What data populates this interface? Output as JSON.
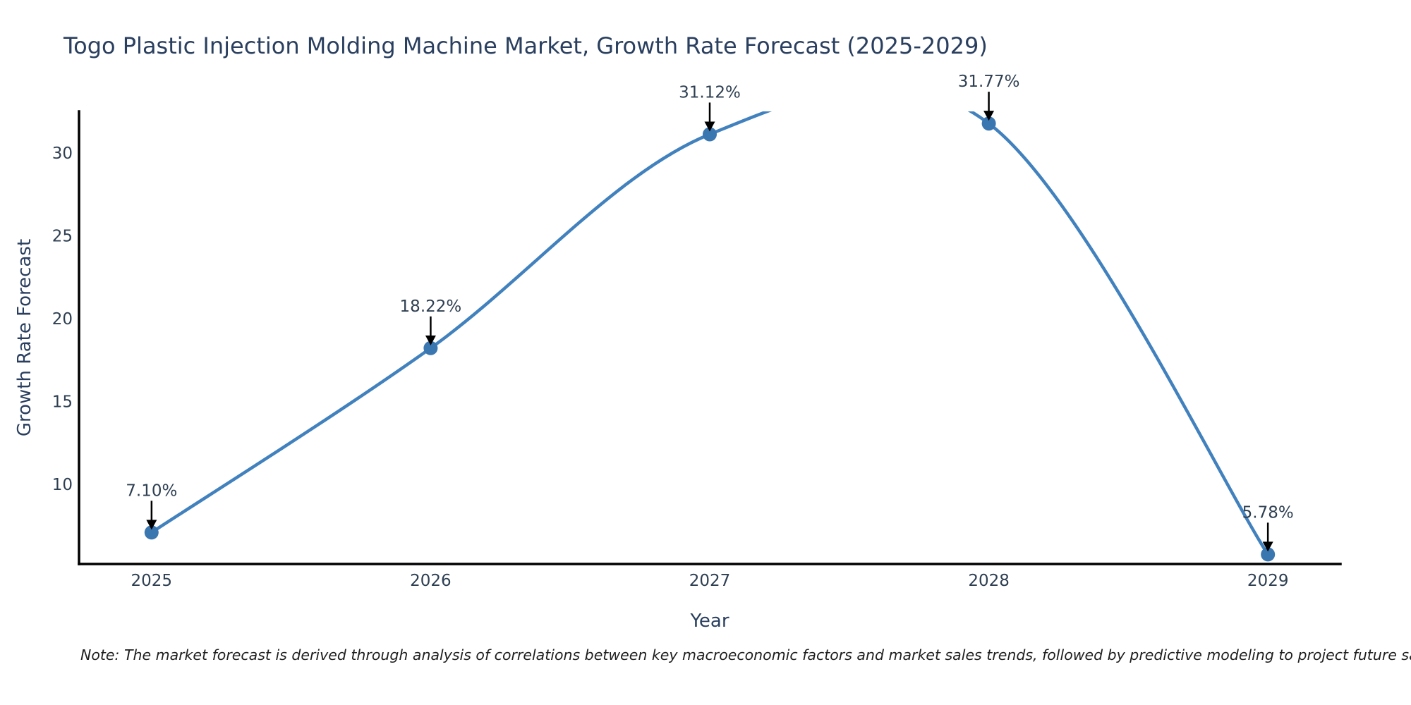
{
  "title": "Togo Plastic Injection Molding Machine Market, Growth Rate Forecast (2025-2029)",
  "note": "Note: The market forecast is derived through analysis of correlations between key macroeconomic factors and market sales trends, followed by predictive modeling to project future sales",
  "chart_data": {
    "type": "line",
    "line_shape": "spline",
    "x": [
      2025,
      2026,
      2027,
      2028,
      2029
    ],
    "values": [
      7.1,
      18.22,
      31.12,
      31.77,
      5.78
    ],
    "point_labels": [
      "7.10%",
      "18.22%",
      "31.12%",
      "31.77%",
      "5.78%"
    ],
    "x_tick_labels": [
      "2025",
      "2026",
      "2027",
      "2028",
      "2029"
    ],
    "y_ticks": [
      10,
      15,
      20,
      25,
      30
    ],
    "xlim": [
      2024.74,
      2029.26
    ],
    "ylim": [
      5.2,
      32.5
    ],
    "xlabel": "Year",
    "ylabel": "Growth Rate Forecast",
    "grid": false,
    "legend": "none",
    "annotations_clipped": false,
    "line_clipped_at_top": true,
    "colors": {
      "line": "#4181bd",
      "marker": "#3a76b0",
      "axis": "#000000",
      "title_text": "#2a3f5f",
      "tick_text": "#2e3f52",
      "annotation_arrow": "#000000",
      "note_text": "#1f1f1f",
      "background": "#ffffff"
    }
  }
}
